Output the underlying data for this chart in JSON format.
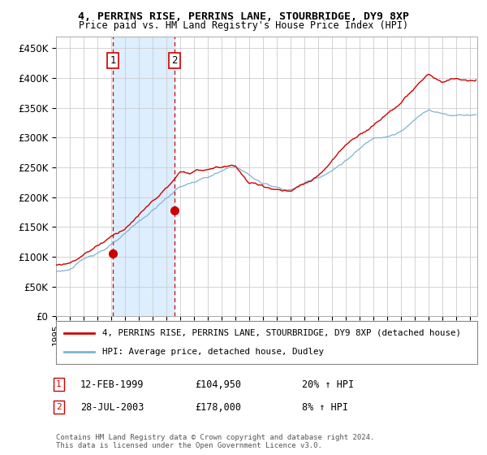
{
  "title1": "4, PERRINS RISE, PERRINS LANE, STOURBRIDGE, DY9 8XP",
  "title2": "Price paid vs. HM Land Registry's House Price Index (HPI)",
  "ylim": [
    0,
    470000
  ],
  "xlim_start": 1995.0,
  "xlim_end": 2025.5,
  "yticks": [
    0,
    50000,
    100000,
    150000,
    200000,
    250000,
    300000,
    350000,
    400000,
    450000
  ],
  "ytick_labels": [
    "£0",
    "£50K",
    "£100K",
    "£150K",
    "£200K",
    "£250K",
    "£300K",
    "£350K",
    "£400K",
    "£450K"
  ],
  "hpi_color": "#7fb3d3",
  "price_color": "#cc0000",
  "purchase1_date": 1999.12,
  "purchase1_price": 104950,
  "purchase2_date": 2003.57,
  "purchase2_price": 178000,
  "legend_line1": "4, PERRINS RISE, PERRINS LANE, STOURBRIDGE, DY9 8XP (detached house)",
  "legend_line2": "HPI: Average price, detached house, Dudley",
  "annotation1_date": "12-FEB-1999",
  "annotation1_price": "£104,950",
  "annotation1_hpi": "20% ↑ HPI",
  "annotation2_date": "28-JUL-2003",
  "annotation2_price": "£178,000",
  "annotation2_hpi": "8% ↑ HPI",
  "footnote": "Contains HM Land Registry data © Crown copyright and database right 2024.\nThis data is licensed under the Open Government Licence v3.0.",
  "background_color": "#ffffff",
  "grid_color": "#cccccc",
  "shade_color": "#ddeeff"
}
